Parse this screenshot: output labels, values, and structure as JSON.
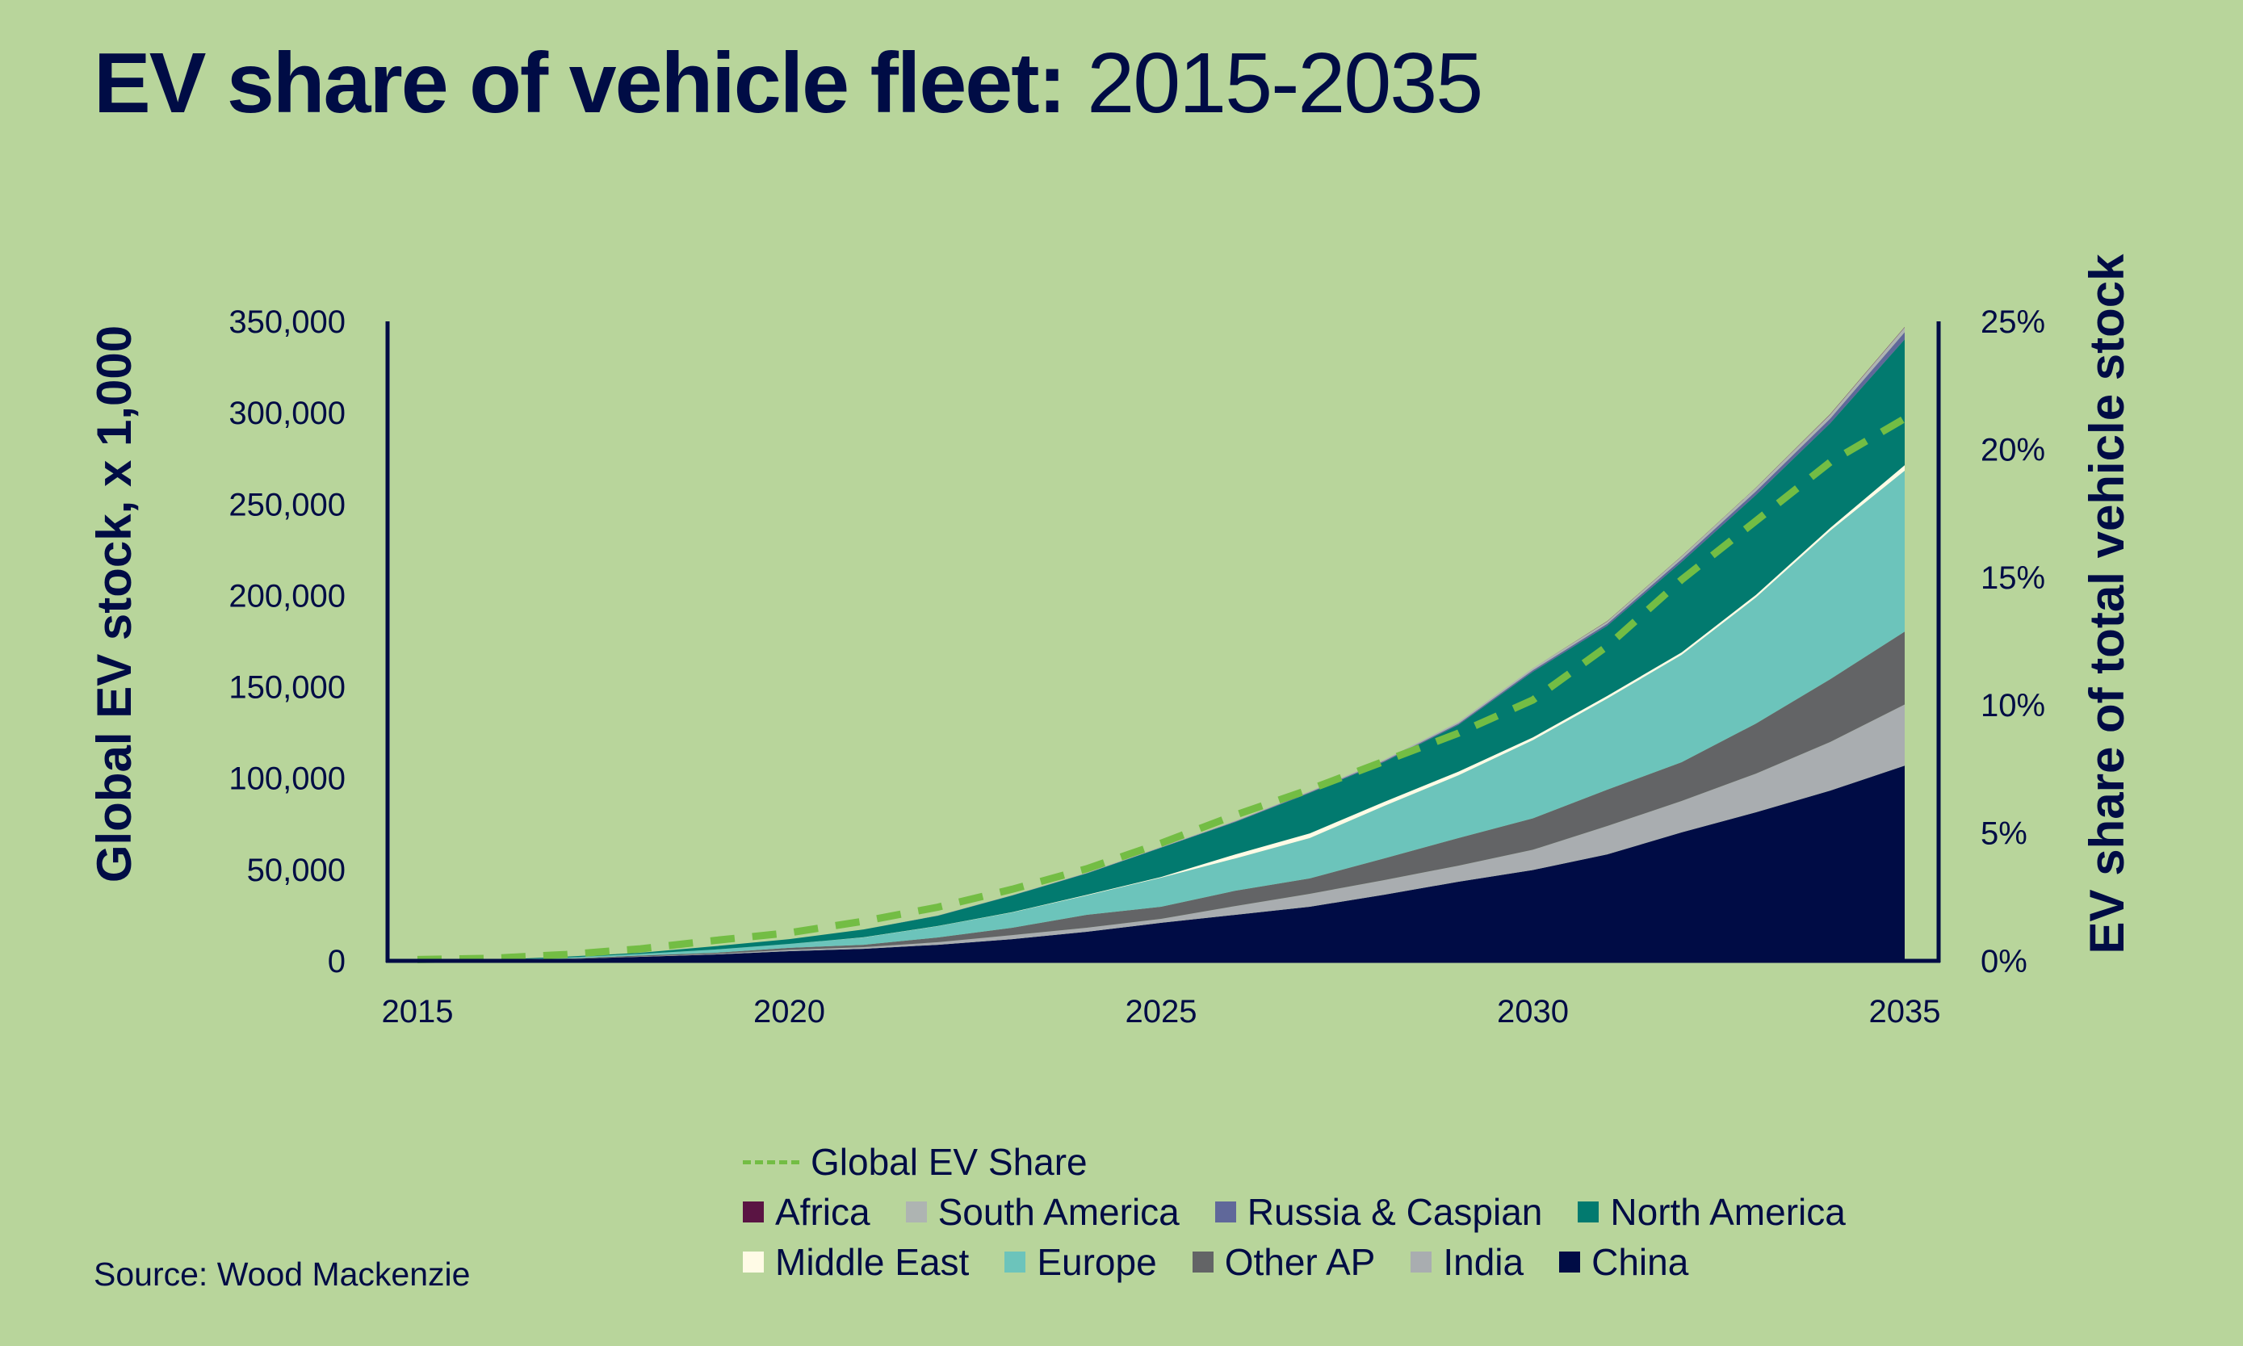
{
  "title": {
    "bold": "EV share of vehicle fleet:",
    "light": " 2015-2035"
  },
  "source": "Source: Wood Mackenzie",
  "chart_data": {
    "type": "area",
    "title": "EV share of vehicle fleet: 2015-2035",
    "xlabel": "",
    "ylabel": "Global EV stock, x 1,000",
    "y2label": "EV share of total vehicle stock",
    "x": [
      2015,
      2016,
      2017,
      2018,
      2019,
      2020,
      2021,
      2022,
      2023,
      2024,
      2025,
      2026,
      2027,
      2028,
      2029,
      2030,
      2031,
      2032,
      2033,
      2034,
      2035
    ],
    "xticks": [
      "2015",
      "2020",
      "2025",
      "2030",
      "2035"
    ],
    "xtick_values": [
      2015,
      2020,
      2025,
      2030,
      2035
    ],
    "ylim": [
      0,
      350000
    ],
    "yticks": [
      "0",
      "50,000",
      "100,000",
      "150,000",
      "200,000",
      "250,000",
      "300,000",
      "350,000"
    ],
    "ytick_values": [
      0,
      50000,
      100000,
      150000,
      200000,
      250000,
      300000,
      350000
    ],
    "y2lim": [
      0,
      25
    ],
    "y2ticks": [
      "0%",
      "5%",
      "10%",
      "15%",
      "20%",
      "25%"
    ],
    "y2tick_values": [
      0,
      5,
      10,
      15,
      20,
      25
    ],
    "grid": false,
    "legend_position": "bottom",
    "stack_order": "bottom-to-top",
    "series": [
      {
        "name": "China",
        "color": "#000c45",
        "values": [
          100,
          300,
          1000,
          2200,
          3500,
          5300,
          6600,
          8800,
          11900,
          15900,
          20800,
          25200,
          29600,
          36200,
          43300,
          49700,
          58300,
          70300,
          81300,
          93200,
          106800
        ]
      },
      {
        "name": "India",
        "color": "#a9adb0",
        "values": [
          0,
          20,
          100,
          200,
          300,
          700,
          900,
          1400,
          2200,
          2200,
          2200,
          4800,
          7100,
          8000,
          8800,
          11100,
          15500,
          17200,
          21200,
          26600,
          33500
        ]
      },
      {
        "name": "Other AP",
        "color": "#636466",
        "values": [
          20,
          60,
          200,
          500,
          600,
          1100,
          1300,
          2600,
          4000,
          7100,
          6600,
          8400,
          8400,
          11900,
          15100,
          17200,
          19900,
          21200,
          27400,
          34400,
          39900
        ]
      },
      {
        "name": "Europe",
        "color": "#6cc4bb",
        "values": [
          20,
          80,
          500,
          900,
          1800,
          2200,
          4000,
          6200,
          8400,
          10600,
          15900,
          17700,
          22100,
          28700,
          34400,
          42800,
          49900,
          58800,
          69000,
          81300,
          88100
        ]
      },
      {
        "name": "Middle East",
        "color": "#fffbe6",
        "values": [
          0,
          0,
          0,
          0,
          0,
          0,
          100,
          100,
          200,
          300,
          400,
          2200,
          2600,
          2200,
          2000,
          1500,
          1400,
          1300,
          1400,
          1500,
          3000
        ]
      },
      {
        "name": "North America",
        "color": "#027a6f",
        "values": [
          30,
          100,
          500,
          600,
          1800,
          2600,
          4300,
          5600,
          9100,
          11700,
          16000,
          17700,
          22100,
          21900,
          25600,
          35900,
          38400,
          49500,
          54700,
          57300,
          68900
        ]
      },
      {
        "name": "Russia & Caspian",
        "color": "#60689a",
        "values": [
          0,
          0,
          0,
          0,
          0,
          0,
          0,
          100,
          100,
          200,
          200,
          300,
          400,
          500,
          700,
          900,
          1100,
          1500,
          2000,
          2600,
          3900
        ]
      },
      {
        "name": "South America",
        "color": "#aeb4b2",
        "values": [
          0,
          0,
          0,
          0,
          0,
          0,
          0,
          100,
          100,
          200,
          300,
          400,
          500,
          700,
          900,
          1100,
          1300,
          1600,
          1900,
          2200,
          2600
        ]
      },
      {
        "name": "Africa",
        "color": "#5a1443",
        "values": [
          0,
          0,
          0,
          0,
          0,
          0,
          0,
          0,
          0,
          0,
          0,
          0,
          0,
          0,
          0,
          0,
          100,
          100,
          100,
          200,
          200
        ]
      }
    ],
    "line_series": {
      "name": "Global EV Share",
      "axis": "right",
      "unit": "%",
      "color": "#73bd44",
      "style": "dashed",
      "values": [
        0.05,
        0.1,
        0.25,
        0.47,
        0.8,
        1.1,
        1.55,
        2.1,
        2.8,
        3.6,
        4.6,
        5.7,
        6.7,
        7.8,
        8.9,
        10.2,
        12.3,
        14.9,
        17.2,
        19.5,
        21.2
      ]
    }
  },
  "legend": {
    "line_label": "Global EV Share",
    "rows": [
      [
        {
          "label": "Africa",
          "color": "#5a1443"
        },
        {
          "label": "South America",
          "color": "#aeb4b2"
        },
        {
          "label": "Russia & Caspian",
          "color": "#60689a"
        },
        {
          "label": "North America",
          "color": "#027a6f"
        }
      ],
      [
        {
          "label": "Middle East",
          "color": "#fffbe6"
        },
        {
          "label": "Europe",
          "color": "#6cc4bb"
        },
        {
          "label": "Other AP",
          "color": "#636466"
        },
        {
          "label": "India",
          "color": "#a9adb0"
        },
        {
          "label": "China",
          "color": "#000c45"
        }
      ]
    ]
  },
  "colors": {
    "background": "#b8d59b",
    "text": "#000c45",
    "axis": "#000c45"
  }
}
